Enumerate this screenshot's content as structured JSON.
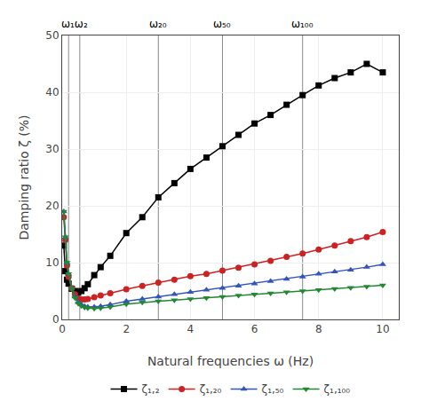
{
  "chart_data": {
    "type": "line",
    "xlabel": "Natural frequencies ω (Hz)",
    "ylabel": "Damping ratio ζ (%)",
    "x": [
      0.05,
      0.1,
      0.15,
      0.2,
      0.3,
      0.4,
      0.5,
      0.6,
      0.7,
      0.8,
      1.0,
      1.2,
      1.5,
      2.0,
      2.5,
      3.0,
      3.5,
      4.0,
      4.5,
      5.0,
      5.5,
      6.0,
      6.5,
      7.0,
      7.5,
      8.0,
      8.5,
      9.0,
      9.5,
      10.0
    ],
    "series": [
      {
        "name": "ζ₁,₂",
        "color": "#000000",
        "marker": "square",
        "values": [
          13.0,
          8.5,
          7.0,
          6.3,
          5.4,
          5.0,
          4.7,
          5.0,
          5.5,
          6.2,
          7.8,
          9.2,
          11.2,
          15.2,
          18.0,
          21.5,
          24.0,
          26.5,
          28.5,
          30.5,
          32.5,
          34.5,
          36.0,
          37.8,
          39.5,
          41.2,
          42.5,
          43.5,
          45.0,
          43.5
        ]
      },
      {
        "name": "ζ₁,₂₀",
        "color": "#cc2222",
        "marker": "circle",
        "values": [
          18.0,
          14.0,
          9.5,
          7.5,
          5.5,
          4.4,
          3.7,
          3.5,
          3.5,
          3.6,
          3.9,
          4.2,
          4.6,
          5.3,
          5.9,
          6.5,
          7.0,
          7.6,
          8.0,
          8.6,
          9.1,
          9.7,
          10.3,
          11.0,
          11.6,
          12.3,
          13.0,
          13.8,
          14.5,
          15.4
        ]
      },
      {
        "name": "ζ₁,₅₀",
        "color": "#3355bb",
        "marker": "triangle-up",
        "values": [
          19.0,
          14.5,
          10.0,
          8.0,
          5.5,
          4.0,
          3.0,
          2.6,
          2.3,
          2.2,
          2.2,
          2.3,
          2.6,
          3.2,
          3.6,
          4.0,
          4.4,
          4.8,
          5.2,
          5.5,
          5.9,
          6.3,
          6.7,
          7.1,
          7.5,
          8.0,
          8.4,
          8.7,
          9.2,
          9.7
        ]
      },
      {
        "name": "ζ₁,₁₀₀",
        "color": "#228833",
        "marker": "triangle-down",
        "values": [
          19.0,
          14.5,
          10.0,
          8.0,
          5.4,
          3.8,
          2.8,
          2.4,
          2.1,
          2.0,
          1.9,
          2.0,
          2.2,
          2.7,
          3.0,
          3.2,
          3.4,
          3.6,
          3.8,
          4.0,
          4.2,
          4.4,
          4.6,
          4.8,
          5.0,
          5.2,
          5.4,
          5.6,
          5.8,
          6.0
        ]
      }
    ],
    "vlines": [
      0.2,
      0.55,
      3.0,
      5.0,
      7.5
    ],
    "annotations": [
      {
        "text": "ω₁ω₂",
        "x": 0.375
      },
      {
        "text": "ω₂₀",
        "x": 3.0
      },
      {
        "text": "ω₅₀",
        "x": 5.0
      },
      {
        "text": "ω₁₀₀",
        "x": 7.5
      }
    ],
    "xlim": [
      0,
      10.5
    ],
    "ylim": [
      0,
      50
    ],
    "xticks": [
      0,
      2,
      4,
      6,
      8,
      10
    ],
    "yticks": [
      0,
      10,
      20,
      30,
      40,
      50
    ],
    "grid": true,
    "legend": "bottom"
  }
}
